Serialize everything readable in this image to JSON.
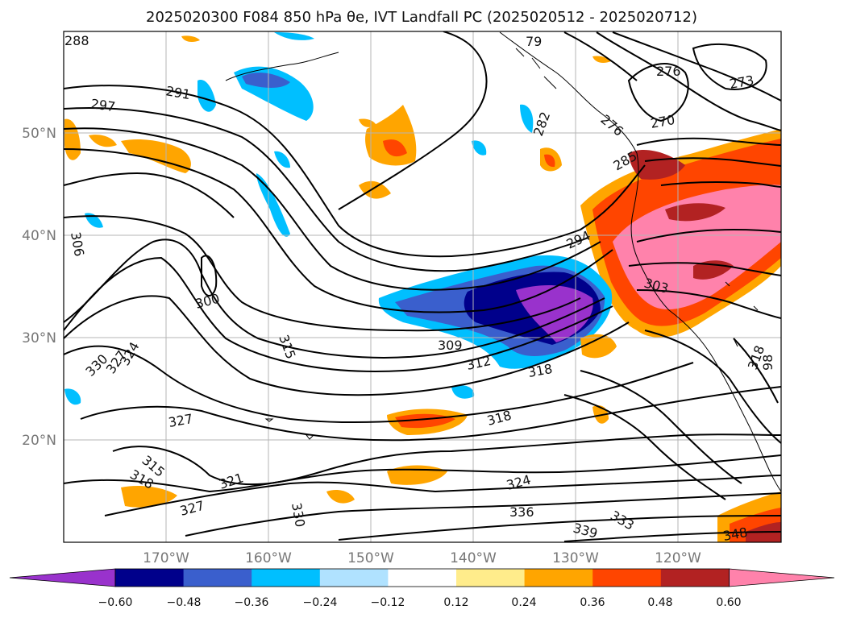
{
  "title": "2025020300 F084 850 hPa θe, IVT Landfall PC (2025020512 - 2025020712)",
  "lon_ticks": [
    "170°W",
    "160°W",
    "150°W",
    "140°W",
    "130°W",
    "120°W"
  ],
  "lat_ticks": [
    "50°N",
    "40°N",
    "30°N",
    "20°N"
  ],
  "colorbar": {
    "ticks": [
      "−0.60",
      "−0.48",
      "−0.36",
      "−0.24",
      "−0.12",
      "0.12",
      "0.24",
      "0.36",
      "0.48",
      "0.60"
    ],
    "colors": [
      "#9932cc",
      "#00008b",
      "#3a5fcd",
      "#00bfff",
      "#b0e2ff",
      "#ffffff",
      "#ffec8b",
      "#ffa500",
      "#ff4500",
      "#b22222",
      "#ff82ab"
    ]
  },
  "contour_labels": [
    {
      "text": "288"
    },
    {
      "text": "291"
    },
    {
      "text": "297"
    },
    {
      "text": "79"
    },
    {
      "text": "282"
    },
    {
      "text": "276"
    },
    {
      "text": "273"
    },
    {
      "text": "276"
    },
    {
      "text": "270"
    },
    {
      "text": "285"
    },
    {
      "text": "306"
    },
    {
      "text": "300"
    },
    {
      "text": "294"
    },
    {
      "text": "303"
    },
    {
      "text": "315"
    },
    {
      "text": "309"
    },
    {
      "text": "312"
    },
    {
      "text": "318"
    },
    {
      "text": "330"
    },
    {
      "text": "327"
    },
    {
      "text": "324"
    },
    {
      "text": "327"
    },
    {
      "text": "318"
    },
    {
      "text": "315"
    },
    {
      "text": "318"
    },
    {
      "text": "321"
    },
    {
      "text": "327"
    },
    {
      "text": "330"
    },
    {
      "text": "324"
    },
    {
      "text": "336"
    },
    {
      "text": "333"
    },
    {
      "text": "339"
    },
    {
      "text": "348"
    },
    {
      "text": "318"
    },
    {
      "text": "98"
    }
  ]
}
